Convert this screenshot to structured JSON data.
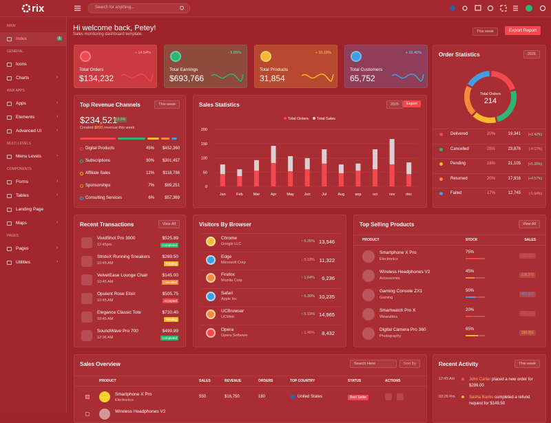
{
  "header": {
    "logo": "rix",
    "search_placeholder": "Search for anything..."
  },
  "sidebar": {
    "sections": [
      {
        "title": "MAIN",
        "items": [
          {
            "label": "Index",
            "badge": "1"
          }
        ]
      },
      {
        "title": "GENERAL",
        "items": [
          {
            "label": "Icons"
          },
          {
            "label": "Charts"
          }
        ]
      },
      {
        "title": "WEB APPS",
        "items": [
          {
            "label": "Apps"
          },
          {
            "label": "Elements"
          },
          {
            "label": "Advanced UI"
          }
        ]
      },
      {
        "title": "MULTI LEVELS",
        "items": [
          {
            "label": "Menu Levels"
          }
        ]
      },
      {
        "title": "COMPONENTS",
        "items": [
          {
            "label": "Forms"
          },
          {
            "label": "Tables"
          },
          {
            "label": "Landing Page"
          },
          {
            "label": "Maps"
          }
        ]
      },
      {
        "title": "PAGES",
        "items": [
          {
            "label": "Pages"
          },
          {
            "label": "Utilities"
          }
        ]
      }
    ]
  },
  "welcome": {
    "title": "Hi welcome back, Petey!",
    "subtitle": "Sales monitoring dashboard template.",
    "period": "This week",
    "export": "Export Report"
  },
  "stats": [
    {
      "label": "Total Orders",
      "value": "$134,232",
      "change": "+ 14.54%"
    },
    {
      "label": "Total Earnings",
      "value": "$693,766",
      "change": "- 5.85%"
    },
    {
      "label": "Total Products",
      "value": "31,854",
      "change": "+ 10.15%"
    },
    {
      "label": "Total Customers",
      "value": "65,752",
      "change": "+ 16.45%"
    }
  ],
  "revenue": {
    "title": "Top Revenue Channels",
    "period": "This week",
    "amount": "$234,521",
    "badge": "13.5%",
    "created_prefix": "Created",
    "created_amount": "$893",
    "created_suffix": "revenue this week",
    "rows": [
      [
        "Digital Products",
        "45%",
        "$452,360"
      ],
      [
        "Subscriptions",
        "30%",
        "$301,457"
      ],
      [
        "Affiliate Sales",
        "12%",
        "$118,786"
      ],
      [
        "Sponsorships",
        "7%",
        "$69,251"
      ],
      [
        "Consulting Services",
        "6%",
        "$57,369"
      ]
    ]
  },
  "sales_card": {
    "period": "2025",
    "export": "Export"
  },
  "order_card": {
    "period": "2025",
    "counts": [
      "19,341",
      "23,876",
      "21,105",
      "17,916",
      "12,745"
    ],
    "changes": [
      "(+2.42%)",
      "(-4.07%)",
      "(+5.28%)",
      "(+4.57%)",
      "(-1.94%)"
    ]
  },
  "chart_data": [
    {
      "type": "bar",
      "stacked": true,
      "title": "Sales Statistics",
      "categories": [
        "Jan",
        "Feb",
        "Mar",
        "Apr",
        "May",
        "Jun",
        "Jul",
        "Aug",
        "sep",
        "oct",
        "nov",
        "dec"
      ],
      "series": [
        {
          "name": "Total Orders",
          "color": "#f2484e",
          "values": [
            43,
            36,
            55,
            82,
            53,
            60,
            80,
            46,
            55,
            60,
            77,
            43
          ]
        },
        {
          "name": "Total Sales",
          "color": "#dccfd1",
          "values": [
            34,
            24,
            37,
            60,
            53,
            39,
            50,
            31,
            25,
            70,
            89,
            41
          ]
        }
      ],
      "ylim": [
        0,
        200
      ],
      "yticks": [
        0,
        50,
        100,
        150,
        200
      ]
    },
    {
      "type": "donut",
      "title": "Order Statistics",
      "center_label": "Total Orders",
      "center_value": 214,
      "categories": [
        "Delivered",
        "Cancelled",
        "Pending",
        "Returned",
        "Failed"
      ],
      "values": [
        20,
        25,
        16,
        20,
        17
      ],
      "value_labels": [
        "20%",
        "25%",
        "16%",
        "20%",
        "17%"
      ],
      "colors": [
        "#f2484e",
        "#2bb673",
        "#f5b82e",
        "#f58a3d",
        "#3f9fe0"
      ]
    }
  ],
  "transactions": {
    "title": "Recent Transactions",
    "view_all": "View All",
    "rows": [
      [
        "VividShot Pro 3000",
        "12:45pm",
        "$525.89",
        "Completed"
      ],
      [
        "StrideX Running Sneakers",
        "10:45 AM",
        "$289.50",
        "Pending"
      ],
      [
        "VelvetEase Lounge Chair",
        "10:45 AM",
        "$145.00",
        "Cancelled"
      ],
      [
        "Opulent Rose Elixir",
        "10:45 AM",
        "$505.75",
        "Accepted"
      ],
      [
        "Elegance Classic Tote",
        "10:45 AM",
        "$720.40",
        "Pending"
      ],
      [
        "SoundWave Pro 700",
        "12:36 AM",
        "$499.99",
        "Completed"
      ]
    ]
  },
  "browsers": {
    "title": "Visitors By Browser",
    "rows": [
      [
        "Chrome",
        "Google LLC",
        "↑ 5.26%",
        "13,546"
      ],
      [
        "Edge",
        "Microsoft Corp",
        "↓ 0.18%",
        "11,322"
      ],
      [
        "Firefox",
        "Mozilla Corp",
        "↑ 1.64%",
        "6,236"
      ],
      [
        "Safari",
        "Apple Inc",
        "↑ 6.30%",
        "10,235"
      ],
      [
        "UCBrowser",
        "UCWeb",
        "↑ 5.19%",
        "14,965"
      ],
      [
        "Opera",
        "Opera Software",
        "↓ 1.45%",
        "8,432"
      ]
    ]
  },
  "top_products": {
    "title": "Top Selling Products",
    "view_all": "View All",
    "headers": [
      "PRODUCT",
      "STOCK",
      "SALES"
    ],
    "rows": [
      [
        "Smartphone X Pro",
        "Electronics",
        "75%",
        "550,152"
      ],
      [
        "Wireless Headphones V2",
        "Accessories",
        "45%",
        "138,378"
      ],
      [
        "Gaming Console ZX1",
        "Gaming",
        "50%",
        "450,902"
      ],
      [
        "Smartwatch Pro X",
        "Wearables",
        "20%",
        "800,754"
      ],
      [
        "Digital Camera Pro 360",
        "Photography",
        "65%",
        "180,351"
      ]
    ]
  },
  "sales_overview": {
    "title": "Sales Overview",
    "search": "Search Here",
    "sort": "Sort By",
    "headers": [
      "PRODUCT",
      "SALES",
      "REVENUE",
      "ORDERS",
      "TOP COUNTRY",
      "STATUS",
      "ACTIONS"
    ],
    "rows": [
      {
        "product": "Smartphone X Pro",
        "category": "Electronics",
        "sales": "550",
        "revenue": "$16,750",
        "orders": "180",
        "country": "United States",
        "status": "Best Seller"
      },
      {
        "product": "Wireless Headphones V2"
      }
    ]
  },
  "activity": {
    "title": "Recent Activity",
    "period": "This week",
    "items": [
      {
        "time": "12:45 Am",
        "who": "John Carter",
        "text": "placed a new order for $299.00"
      },
      {
        "time": "03:26 Pm",
        "who": "Sasha Banks",
        "text": "completed a refund request for $149.50"
      }
    ]
  }
}
